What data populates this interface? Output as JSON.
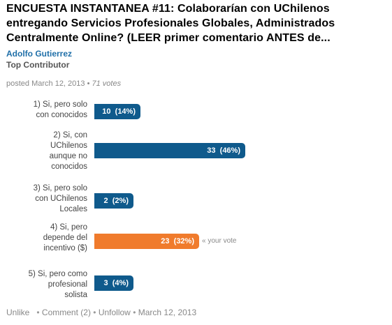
{
  "post": {
    "title": "ENCUESTA INSTANTANEA #11: Colaborarían con UChilenos entregando Servicios Profesionales Globales, Administrados Centralmente Online? (LEER primer comentario ANTES de...",
    "author": "Adolfo Gutierrez",
    "role": "Top Contributor",
    "meta_prefix": "posted March 12, 2013 • ",
    "votes": "71 votes"
  },
  "colors": {
    "bar": "#0f5a8c",
    "voted": "#f07b2c",
    "author": "#1f6fa8"
  },
  "poll": {
    "options": [
      {
        "label_lines": [
          "1) Si, pero solo",
          "con conocidos"
        ],
        "count": "10",
        "pct": "(14%)",
        "share": 0.14,
        "voted": false
      },
      {
        "label_lines": [
          "2) Si, con",
          "UChilenos",
          "aunque no",
          "conocidos"
        ],
        "count": "33",
        "pct": "(46%)",
        "share": 0.46,
        "voted": false
      },
      {
        "label_lines": [
          "3) Si, pero solo",
          "con UChilenos",
          "Locales"
        ],
        "count": "2",
        "pct": "(2%)",
        "share": 0.02,
        "voted": false
      },
      {
        "label_lines": [
          "4) Si, pero",
          "depende del",
          "incentivo ($)"
        ],
        "count": "23",
        "pct": "(32%)",
        "share": 0.32,
        "voted": true
      },
      {
        "label_lines": [
          "5) Si, pero como",
          "profesional",
          "solista"
        ],
        "count": "3",
        "pct": "(4%)",
        "share": 0.04,
        "voted": false
      }
    ],
    "your_vote_label": "« your vote"
  },
  "footer": {
    "unlike": "Unlike",
    "comment": "Comment (2)",
    "unfollow": "Unfollow",
    "date": "March 12, 2013",
    "separator": "•"
  }
}
